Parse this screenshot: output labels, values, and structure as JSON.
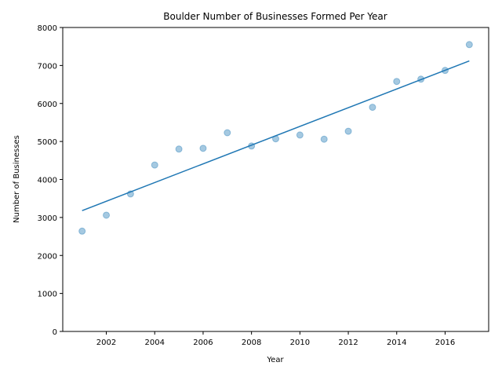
{
  "chart_data": {
    "type": "scatter",
    "title": "Boulder Number of Businesses Formed Per Year",
    "xlabel": "Year",
    "ylabel": "Number of Businesses",
    "xlim": [
      2000.2,
      2017.8
    ],
    "ylim": [
      0,
      8000
    ],
    "x_ticks": [
      2002,
      2004,
      2006,
      2008,
      2010,
      2012,
      2014,
      2016
    ],
    "y_ticks": [
      0,
      1000,
      2000,
      3000,
      4000,
      5000,
      6000,
      7000,
      8000
    ],
    "grid": false,
    "series": [
      {
        "type": "scatter",
        "color": "#1f77b4",
        "points": [
          {
            "x": 2001,
            "y": 2640
          },
          {
            "x": 2002,
            "y": 3060
          },
          {
            "x": 2003,
            "y": 3620
          },
          {
            "x": 2004,
            "y": 4380
          },
          {
            "x": 2005,
            "y": 4800
          },
          {
            "x": 2006,
            "y": 4820
          },
          {
            "x": 2007,
            "y": 5230
          },
          {
            "x": 2008,
            "y": 4880
          },
          {
            "x": 2009,
            "y": 5070
          },
          {
            "x": 2010,
            "y": 5170
          },
          {
            "x": 2011,
            "y": 5060
          },
          {
            "x": 2012,
            "y": 5270
          },
          {
            "x": 2013,
            "y": 5900
          },
          {
            "x": 2014,
            "y": 6580
          },
          {
            "x": 2015,
            "y": 6640
          },
          {
            "x": 2016,
            "y": 6870
          },
          {
            "x": 2017,
            "y": 7550
          }
        ]
      },
      {
        "type": "line",
        "color": "#1f77b4",
        "points": [
          {
            "x": 2001,
            "y": 3180
          },
          {
            "x": 2017,
            "y": 7120
          }
        ]
      }
    ]
  }
}
